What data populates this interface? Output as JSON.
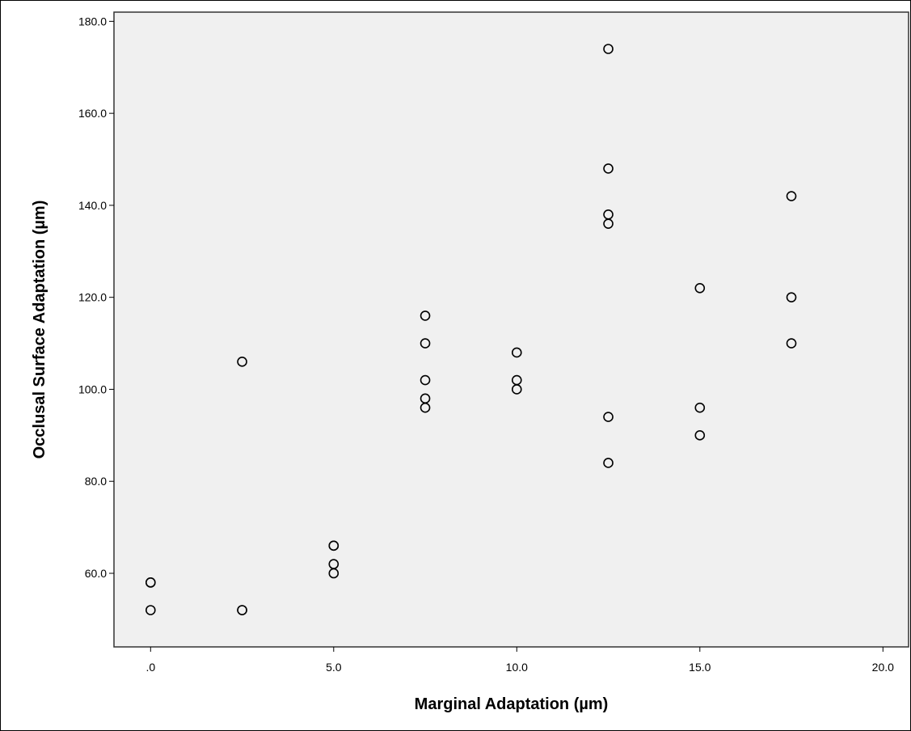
{
  "chart_data": {
    "type": "scatter",
    "title": "",
    "xlabel": "Marginal Adaptation (µm)",
    "ylabel": "Occlusal Surface Adaptation (µm)",
    "xlim": [
      -1.0,
      20.7
    ],
    "ylim": [
      44.0,
      182.0
    ],
    "x_ticks": [
      0,
      5,
      10,
      15,
      20
    ],
    "x_tick_labels": [
      ".0",
      "5.0",
      "10.0",
      "15.0",
      "20.0"
    ],
    "y_ticks": [
      60,
      80,
      100,
      120,
      140,
      160,
      180
    ],
    "y_tick_labels": [
      "60.0",
      "80.0",
      "100.0",
      "120.0",
      "140.0",
      "160.0",
      "180.0"
    ],
    "grid": false,
    "colors": {
      "plot_background": "#f0f0f0",
      "marker_stroke": "#000000",
      "marker_fill": "#f0f0f0"
    },
    "points": [
      {
        "x": 0,
        "y": 58
      },
      {
        "x": 0,
        "y": 58
      },
      {
        "x": 0,
        "y": 52
      },
      {
        "x": 2.5,
        "y": 106
      },
      {
        "x": 2.5,
        "y": 52
      },
      {
        "x": 2.5,
        "y": 52
      },
      {
        "x": 5,
        "y": 66
      },
      {
        "x": 5,
        "y": 66
      },
      {
        "x": 5,
        "y": 62
      },
      {
        "x": 5,
        "y": 60
      },
      {
        "x": 7.5,
        "y": 116
      },
      {
        "x": 7.5,
        "y": 110
      },
      {
        "x": 7.5,
        "y": 102
      },
      {
        "x": 7.5,
        "y": 98
      },
      {
        "x": 7.5,
        "y": 96
      },
      {
        "x": 10,
        "y": 108
      },
      {
        "x": 10,
        "y": 102
      },
      {
        "x": 10,
        "y": 100
      },
      {
        "x": 12.5,
        "y": 174
      },
      {
        "x": 12.5,
        "y": 148
      },
      {
        "x": 12.5,
        "y": 138
      },
      {
        "x": 12.5,
        "y": 136
      },
      {
        "x": 12.5,
        "y": 94
      },
      {
        "x": 12.5,
        "y": 84
      },
      {
        "x": 15,
        "y": 122
      },
      {
        "x": 15,
        "y": 96
      },
      {
        "x": 15,
        "y": 90
      },
      {
        "x": 17.5,
        "y": 142
      },
      {
        "x": 17.5,
        "y": 120
      },
      {
        "x": 17.5,
        "y": 110
      }
    ]
  }
}
